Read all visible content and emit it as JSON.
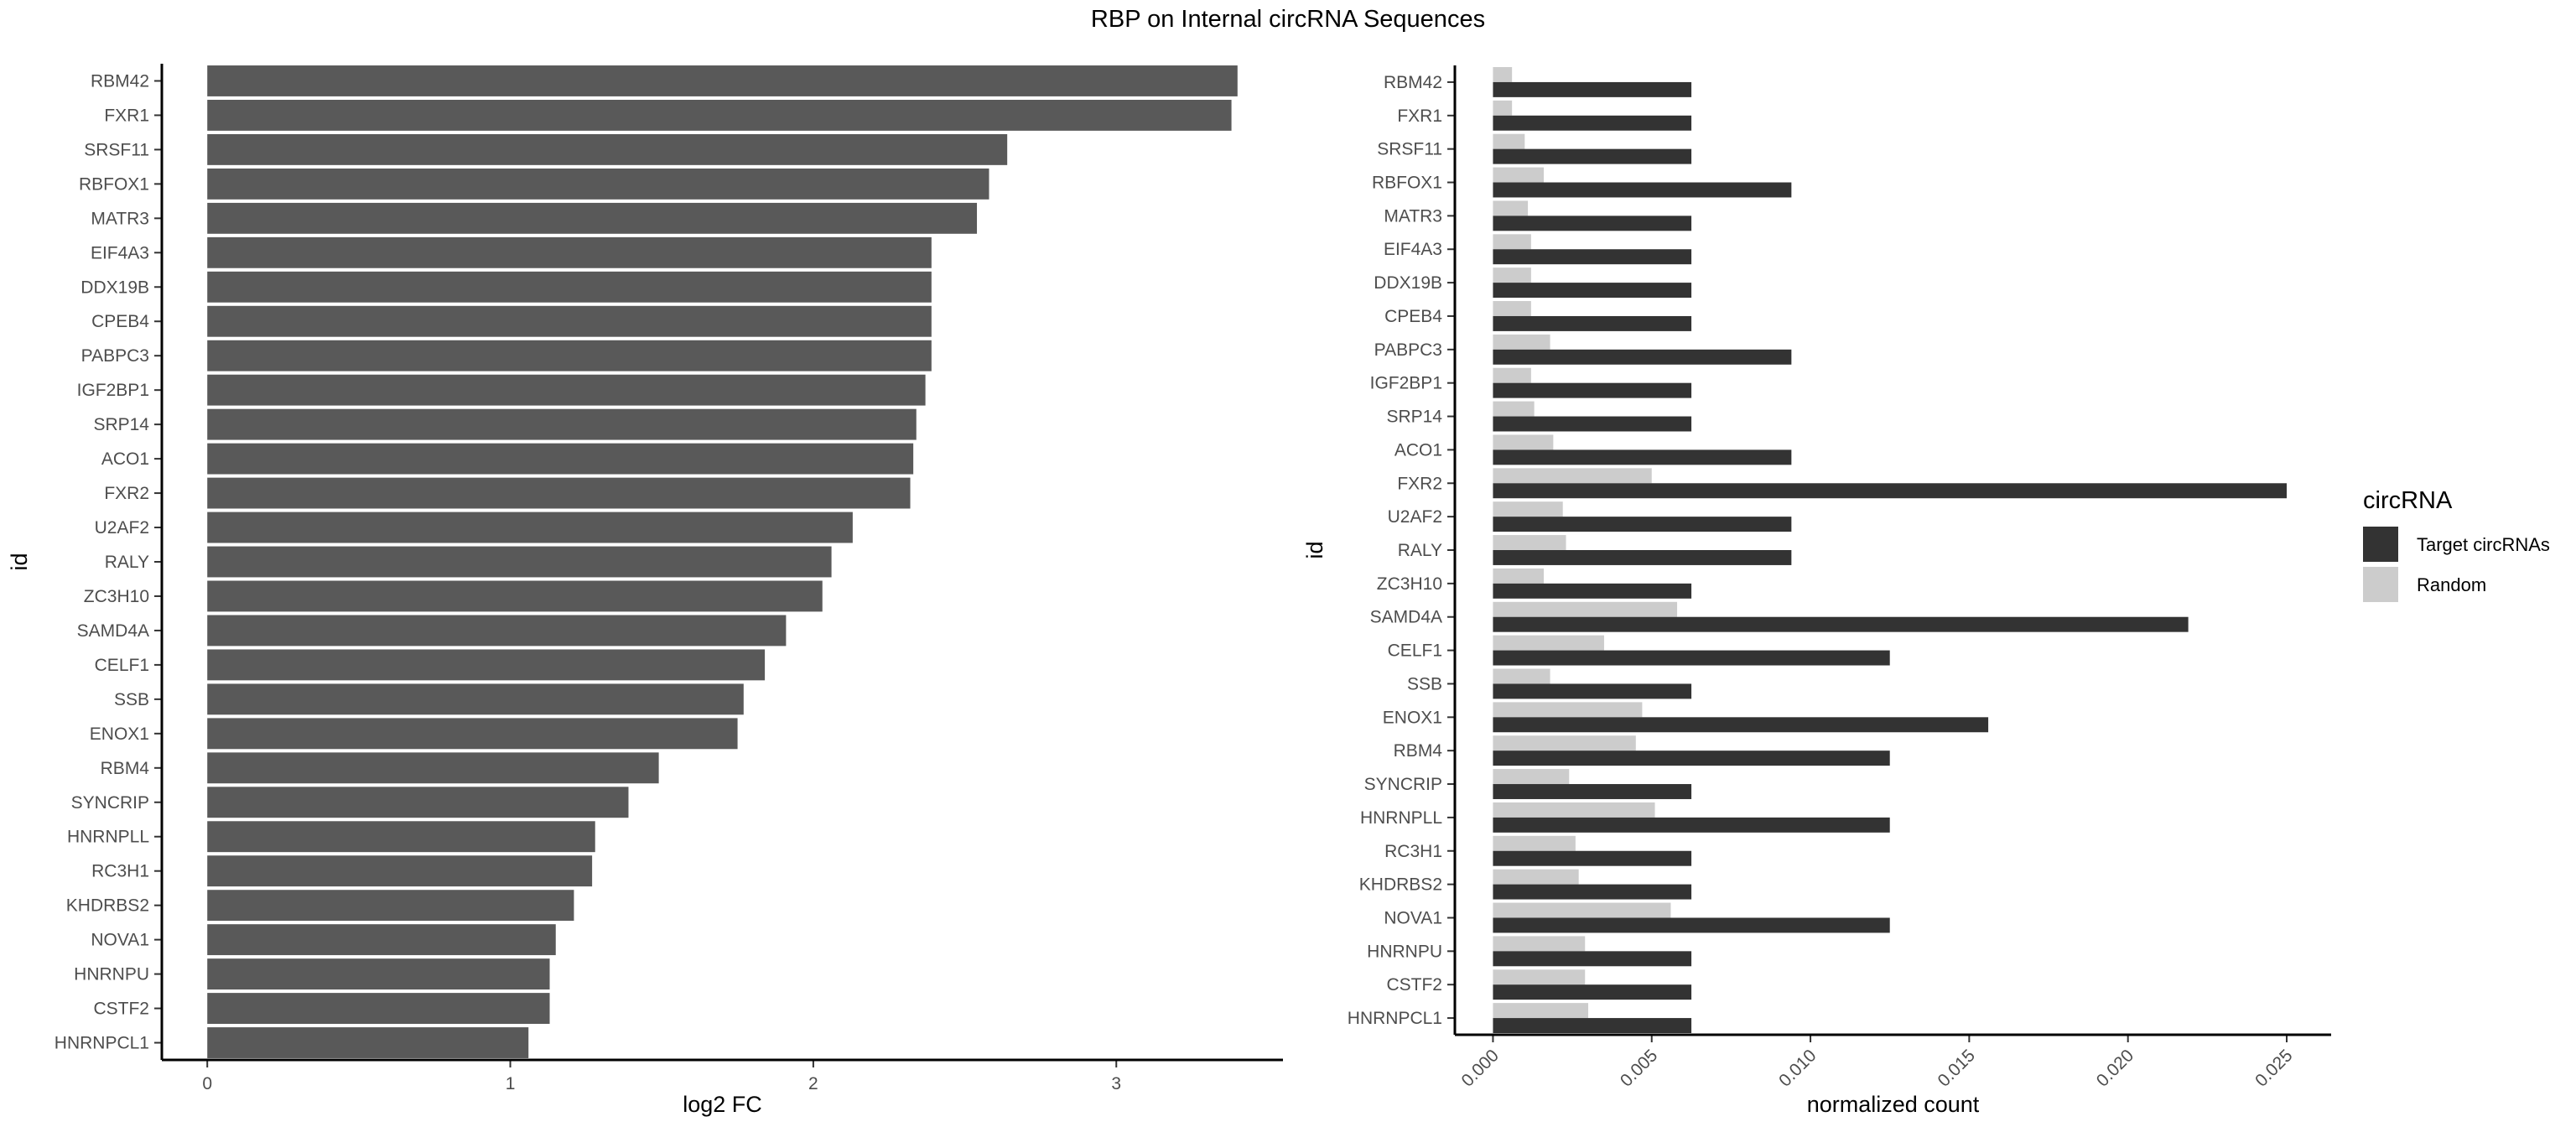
{
  "title": "RBP on Internal circRNA Sequences",
  "chart_data": [
    {
      "type": "bar",
      "orientation": "horizontal",
      "xlabel": "log2 FC",
      "ylabel": "id",
      "xlim": [
        -0.15,
        3.55
      ],
      "xticks": [
        "0",
        "1",
        "2",
        "3"
      ],
      "grid": false,
      "bar_color": "#595959",
      "categories": [
        "RBM42",
        "FXR1",
        "SRSF11",
        "RBFOX1",
        "MATR3",
        "EIF4A3",
        "DDX19B",
        "CPEB4",
        "PABPC3",
        "IGF2BP1",
        "SRP14",
        "ACO1",
        "FXR2",
        "U2AF2",
        "RALY",
        "ZC3H10",
        "SAMD4A",
        "CELF1",
        "SSB",
        "ENOX1",
        "RBM4",
        "SYNCRIP",
        "HNRNPLL",
        "RC3H1",
        "KHDRBS2",
        "NOVA1",
        "HNRNPU",
        "CSTF2",
        "HNRNPCL1"
      ],
      "values": [
        3.4,
        3.38,
        2.64,
        2.58,
        2.54,
        2.39,
        2.39,
        2.39,
        2.39,
        2.37,
        2.34,
        2.33,
        2.32,
        2.13,
        2.06,
        2.03,
        1.91,
        1.84,
        1.77,
        1.75,
        1.49,
        1.39,
        1.28,
        1.27,
        1.21,
        1.15,
        1.13,
        1.13,
        1.06
      ]
    },
    {
      "type": "bar",
      "orientation": "horizontal",
      "xlabel": "normalized count",
      "ylabel": "id",
      "xlim": [
        -0.0012,
        0.0264
      ],
      "xticks": [
        "0.000",
        "0.005",
        "0.010",
        "0.015",
        "0.020",
        "0.025"
      ],
      "grid": false,
      "legend": {
        "title": "circRNA",
        "position": "right"
      },
      "categories": [
        "RBM42",
        "FXR1",
        "SRSF11",
        "RBFOX1",
        "MATR3",
        "EIF4A3",
        "DDX19B",
        "CPEB4",
        "PABPC3",
        "IGF2BP1",
        "SRP14",
        "ACO1",
        "FXR2",
        "U2AF2",
        "RALY",
        "ZC3H10",
        "SAMD4A",
        "CELF1",
        "SSB",
        "ENOX1",
        "RBM4",
        "SYNCRIP",
        "HNRNPLL",
        "RC3H1",
        "KHDRBS2",
        "NOVA1",
        "HNRNPU",
        "CSTF2",
        "HNRNPCL1"
      ],
      "series": [
        {
          "name": "Target circRNAs",
          "color": "#333333",
          "values": [
            0.00625,
            0.00625,
            0.00625,
            0.0094,
            0.00625,
            0.00625,
            0.00625,
            0.00625,
            0.0094,
            0.00625,
            0.00625,
            0.0094,
            0.025,
            0.0094,
            0.0094,
            0.00625,
            0.0219,
            0.0125,
            0.00625,
            0.0156,
            0.0125,
            0.00625,
            0.0125,
            0.00625,
            0.00625,
            0.0125,
            0.00625,
            0.00625,
            0.00625
          ]
        },
        {
          "name": "Random",
          "color": "#cccccc",
          "values": [
            0.0006,
            0.0006,
            0.001,
            0.0016,
            0.0011,
            0.0012,
            0.0012,
            0.0012,
            0.0018,
            0.0012,
            0.0013,
            0.0019,
            0.005,
            0.0022,
            0.0023,
            0.0016,
            0.0058,
            0.0035,
            0.0018,
            0.0047,
            0.0045,
            0.0024,
            0.0051,
            0.0026,
            0.0027,
            0.0056,
            0.0029,
            0.0029,
            0.003
          ]
        }
      ]
    }
  ]
}
